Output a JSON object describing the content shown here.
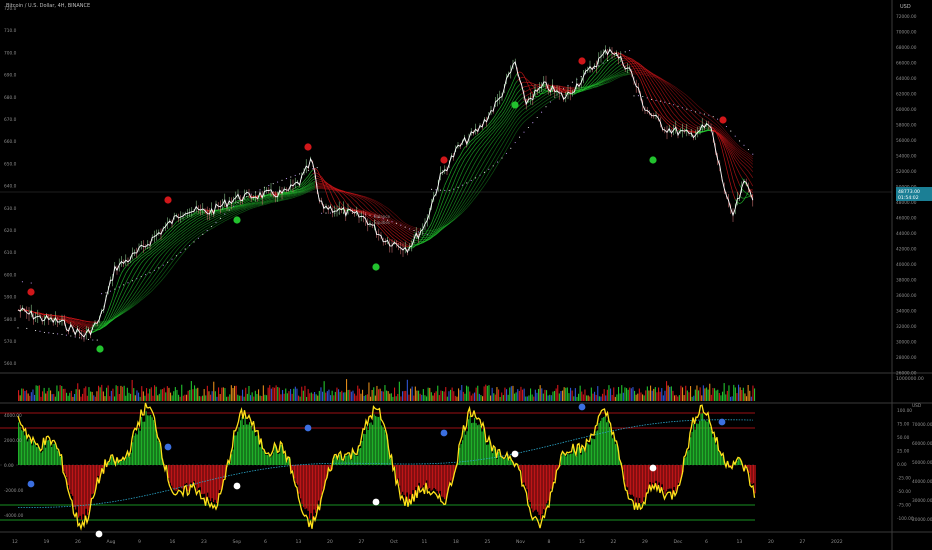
{
  "header": {
    "symbol_title": "Bitcoin / U.S. Dollar, 4H, BINANCE",
    "currency": "USD"
  },
  "colors": {
    "background": "#000000",
    "bull": "#22c22e",
    "bear": "#d0171a",
    "price": "#ffffff",
    "oscillator": "#ffe11a",
    "signal": "#2aa6c9",
    "blue_dot": "#3b6fe0"
  },
  "main_chart": {
    "left_scale": [
      "720.0",
      "710.0",
      "700.0",
      "690.0",
      "680.0",
      "670.0",
      "660.0",
      "650.0",
      "640.0",
      "630.0",
      "620.0",
      "610.0",
      "600.0",
      "590.0",
      "580.0",
      "570.0",
      "560.0"
    ],
    "right_scale": [
      "72000.00",
      "70000.00",
      "68000.00",
      "66000.00",
      "64000.00",
      "62000.00",
      "60000.00",
      "58000.00",
      "56000.00",
      "54000.00",
      "52000.00",
      "50000.00",
      "48000.00",
      "46000.00",
      "44000.00",
      "42000.00",
      "40000.00",
      "38000.00",
      "36000.00",
      "34000.00",
      "32000.00",
      "30000.00",
      "28000.00",
      "26000.00"
    ],
    "price_tag_top": "48773.00",
    "price_tag_bottom": "01:54:02",
    "annotation_line1": "Balance",
    "annotation_line2": "Equities"
  },
  "volume_pane": {
    "right_label": "1000000.00"
  },
  "oscillator_pane": {
    "left_scale": [
      "4000.00",
      "2000.00",
      "0.00",
      "-2000.00",
      "-4000.00"
    ],
    "right_scale": [
      "100.00",
      "75.00",
      "50.00",
      "25.00",
      "0.00",
      "-25.00",
      "-50.00",
      "-75.00",
      "-100.00"
    ],
    "right_scale_usd": [
      "USD",
      "70000.00",
      "60000.00",
      "50000.00",
      "40000.00",
      "30000.00",
      "20000.00"
    ]
  },
  "time_axis": {
    "labels": [
      "12",
      "19",
      "26",
      "Aug",
      "9",
      "16",
      "23",
      "Sep",
      "6",
      "13",
      "20",
      "27",
      "Oct",
      "11",
      "18",
      "25",
      "Nov",
      "8",
      "15",
      "22",
      "29",
      "Dec",
      "6",
      "13",
      "20",
      "27",
      "2022"
    ]
  }
}
